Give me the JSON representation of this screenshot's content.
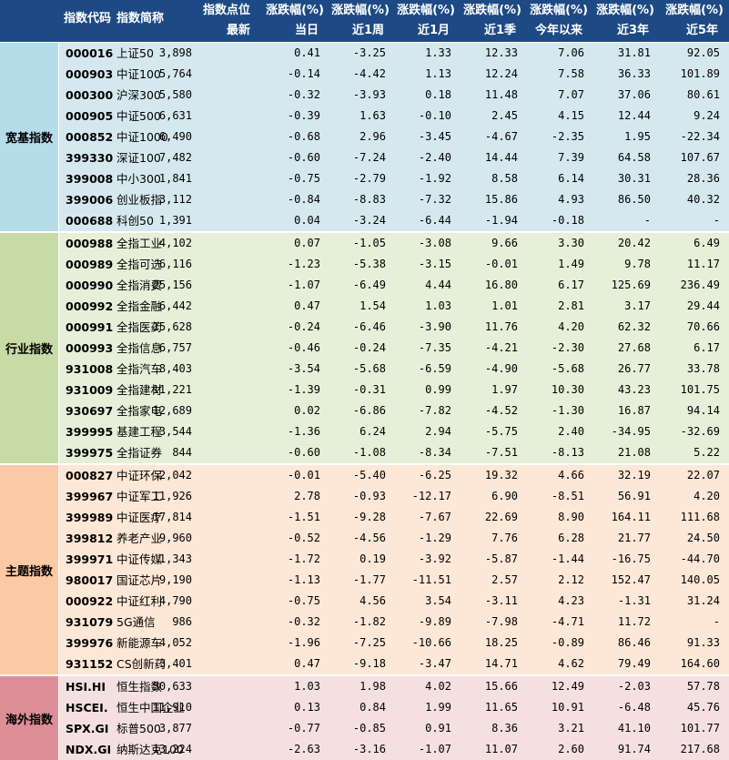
{
  "header": {
    "code": "指数代码",
    "name": "指数简称",
    "point_top": "指数点位",
    "point_bottom": "最新",
    "change_label": "涨跌幅(%)",
    "periods": [
      "当日",
      "近1周",
      "近1月",
      "近1季",
      "今年以来",
      "近3年",
      "近5年"
    ]
  },
  "groups": [
    {
      "name": "宽基指数",
      "color": "#d5e8f0",
      "rows": [
        [
          "000016",
          "上证50",
          "3,898",
          "0.41",
          "-3.25",
          "1.33",
          "12.33",
          "7.06",
          "31.81",
          "92.05"
        ],
        [
          "000903",
          "中证100",
          "5,764",
          "-0.14",
          "-4.42",
          "1.13",
          "12.24",
          "7.58",
          "36.33",
          "101.89"
        ],
        [
          "000300",
          "沪深300",
          "5,580",
          "-0.32",
          "-3.93",
          "0.18",
          "11.48",
          "7.07",
          "37.06",
          "80.61"
        ],
        [
          "000905",
          "中证500",
          "6,631",
          "-0.39",
          "1.63",
          "-0.10",
          "2.45",
          "4.15",
          "12.44",
          "9.24"
        ],
        [
          "000852",
          "中证1000",
          "6,490",
          "-0.68",
          "2.96",
          "-3.45",
          "-4.67",
          "-2.35",
          "1.95",
          "-22.34"
        ],
        [
          "399330",
          "深证100",
          "7,482",
          "-0.60",
          "-7.24",
          "-2.40",
          "14.44",
          "7.39",
          "64.58",
          "107.67"
        ],
        [
          "399008",
          "中小300",
          "1,841",
          "-0.75",
          "-2.79",
          "-1.92",
          "8.58",
          "6.14",
          "30.31",
          "28.36"
        ],
        [
          "399006",
          "创业板指",
          "3,112",
          "-0.84",
          "-8.83",
          "-7.32",
          "15.86",
          "4.93",
          "86.50",
          "40.32"
        ],
        [
          "000688",
          "科创50",
          "1,391",
          "0.04",
          "-3.24",
          "-6.44",
          "-1.94",
          "-0.18",
          "-",
          "-"
        ]
      ]
    },
    {
      "name": "行业指数",
      "color": "#e6efd8",
      "rows": [
        [
          "000988",
          "全指工业",
          "4,102",
          "0.07",
          "-1.05",
          "-3.08",
          "9.66",
          "3.30",
          "20.42",
          "6.49"
        ],
        [
          "000989",
          "全指可选",
          "6,116",
          "-1.23",
          "-5.38",
          "-3.15",
          "-0.01",
          "1.49",
          "9.78",
          "11.17"
        ],
        [
          "000990",
          "全指消费",
          "25,156",
          "-1.07",
          "-6.49",
          "4.44",
          "16.80",
          "6.17",
          "125.69",
          "236.49"
        ],
        [
          "000992",
          "全指金融",
          "6,442",
          "0.47",
          "1.54",
          "1.03",
          "1.01",
          "2.81",
          "3.17",
          "29.44"
        ],
        [
          "000991",
          "全指医药",
          "15,628",
          "-0.24",
          "-6.46",
          "-3.90",
          "11.76",
          "4.20",
          "62.32",
          "70.66"
        ],
        [
          "000993",
          "全指信息",
          "6,757",
          "-0.46",
          "-0.24",
          "-7.35",
          "-4.21",
          "-2.30",
          "27.68",
          "6.17"
        ],
        [
          "931008",
          "全指汽车",
          "8,403",
          "-3.54",
          "-5.68",
          "-6.59",
          "-4.90",
          "-5.68",
          "26.77",
          "33.78"
        ],
        [
          "931009",
          "全指建材",
          "11,221",
          "-1.39",
          "-0.31",
          "0.99",
          "1.97",
          "10.30",
          "43.23",
          "101.75"
        ],
        [
          "930697",
          "全指家电",
          "12,689",
          "0.02",
          "-6.86",
          "-7.82",
          "-4.52",
          "-1.30",
          "16.87",
          "94.14"
        ],
        [
          "399995",
          "基建工程",
          "3,544",
          "-1.36",
          "6.24",
          "2.94",
          "-5.75",
          "2.40",
          "-34.95",
          "-32.69"
        ],
        [
          "399975",
          "全指证券",
          "844",
          "-0.60",
          "-1.08",
          "-8.34",
          "-7.51",
          "-8.13",
          "21.08",
          "5.22"
        ]
      ]
    },
    {
      "name": "主题指数",
      "color": "#fde7d6",
      "rows": [
        [
          "000827",
          "中证环保",
          "2,042",
          "-0.01",
          "-5.40",
          "-6.25",
          "19.32",
          "4.66",
          "32.19",
          "22.07"
        ],
        [
          "399967",
          "中证军工",
          "11,926",
          "2.78",
          "-0.93",
          "-12.17",
          "6.90",
          "-8.51",
          "56.91",
          "4.20"
        ],
        [
          "399989",
          "中证医疗",
          "17,814",
          "-1.51",
          "-9.28",
          "-7.67",
          "22.69",
          "8.90",
          "164.11",
          "111.68"
        ],
        [
          "399812",
          "养老产业",
          "9,960",
          "-0.52",
          "-4.56",
          "-1.29",
          "7.76",
          "6.28",
          "21.77",
          "24.50"
        ],
        [
          "399971",
          "中证传媒",
          "1,343",
          "-1.72",
          "0.19",
          "-3.92",
          "-5.87",
          "-1.44",
          "-16.75",
          "-44.70"
        ],
        [
          "980017",
          "国证芯片",
          "9,190",
          "-1.13",
          "-1.77",
          "-11.51",
          "2.57",
          "2.12",
          "152.47",
          "140.05"
        ],
        [
          "000922",
          "中证红利",
          "4,790",
          "-0.75",
          "4.56",
          "3.54",
          "-3.11",
          "4.23",
          "-1.31",
          "31.24"
        ],
        [
          "931079",
          "5G通信",
          "986",
          "-0.32",
          "-1.82",
          "-9.89",
          "-7.98",
          "-4.71",
          "11.72",
          "-"
        ],
        [
          "399976",
          "新能源车",
          "4,052",
          "-1.96",
          "-7.25",
          "-10.66",
          "18.25",
          "-0.89",
          "86.46",
          "91.33"
        ],
        [
          "931152",
          "CS创新药",
          "3,401",
          "0.47",
          "-9.18",
          "-3.47",
          "14.71",
          "4.62",
          "79.49",
          "164.60"
        ]
      ]
    },
    {
      "name": "海外指数",
      "color": "#f4dfe1",
      "rows": [
        [
          "HSI.HI",
          "恒生指数",
          "30,633",
          "1.03",
          "1.98",
          "4.02",
          "15.66",
          "12.49",
          "-2.03",
          "57.78"
        ],
        [
          "HSCEI.",
          "恒生中国企业",
          "11,910",
          "0.13",
          "0.84",
          "1.99",
          "11.65",
          "10.91",
          "-6.48",
          "45.76"
        ],
        [
          "SPX.GI",
          "标普500",
          "3,877",
          "-0.77",
          "-0.85",
          "0.91",
          "8.36",
          "3.21",
          "41.10",
          "101.77"
        ],
        [
          "NDX.GI",
          "纳斯达克100",
          "13,224",
          "-2.63",
          "-3.16",
          "-1.07",
          "11.07",
          "2.60",
          "91.74",
          "217.68"
        ]
      ]
    }
  ],
  "group_label_colors": [
    "#b4dce9",
    "#c6dba5",
    "#fbc9a3",
    "#dc8f96"
  ]
}
